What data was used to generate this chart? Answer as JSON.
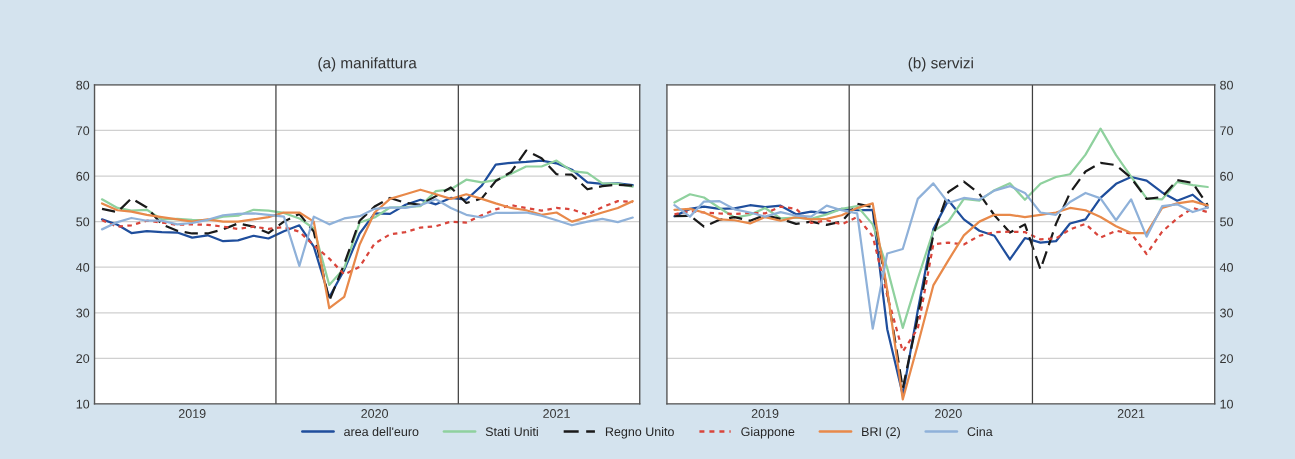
{
  "chart_data": [
    {
      "type": "line",
      "title": "(a) manifattura",
      "legend": "bottom",
      "grid": "y",
      "x": [
        "2019-01",
        "2019-02",
        "2019-03",
        "2019-04",
        "2019-05",
        "2019-06",
        "2019-07",
        "2019-08",
        "2019-09",
        "2019-10",
        "2019-11",
        "2019-12",
        "2020-01",
        "2020-02",
        "2020-03",
        "2020-04",
        "2020-05",
        "2020-06",
        "2020-07",
        "2020-08",
        "2020-09",
        "2020-10",
        "2020-11",
        "2020-12",
        "2021-01",
        "2021-02",
        "2021-03",
        "2021-04",
        "2021-05",
        "2021-06",
        "2021-07",
        "2021-08",
        "2021-09",
        "2021-10",
        "2021-11",
        "2021-12"
      ],
      "xlim": [
        "2018-12-17",
        "2021-12-15"
      ],
      "xticks": [
        {
          "value": "2019-07-01",
          "label": "2019"
        },
        {
          "value": "2020-07-01",
          "label": "2020"
        },
        {
          "value": "2021-07-01",
          "label": "2021"
        }
      ],
      "ylim": [
        10,
        80
      ],
      "yticks": [
        10,
        20,
        30,
        40,
        50,
        60,
        70,
        80
      ],
      "ref_lines": [
        {
          "axis": "x",
          "value": "2019-12-16",
          "color": "#404040"
        },
        {
          "axis": "x",
          "value": "2020-12-16",
          "color": "#404040"
        }
      ],
      "series": [
        {
          "name": "area dell'euro",
          "color": "#1f4e9c",
          "line_style": "solid",
          "values": [
            50.5,
            49.3,
            47.5,
            47.9,
            47.7,
            47.6,
            46.5,
            47.0,
            45.7,
            45.9,
            46.9,
            46.3,
            47.9,
            49.2,
            44.5,
            33.4,
            39.4,
            47.4,
            51.8,
            51.7,
            53.7,
            54.8,
            53.8,
            55.2,
            54.8,
            57.9,
            62.5,
            62.9,
            63.1,
            63.4,
            62.8,
            61.4,
            58.6,
            58.3,
            58.4,
            58.0
          ]
        },
        {
          "name": "Stati Uniti",
          "color": "#8fd19e",
          "line_style": "solid",
          "values": [
            54.9,
            53.0,
            52.4,
            52.6,
            50.5,
            50.6,
            50.4,
            50.3,
            51.1,
            51.3,
            52.6,
            52.4,
            51.9,
            50.7,
            48.5,
            36.1,
            39.8,
            49.8,
            50.9,
            53.1,
            53.2,
            53.4,
            56.7,
            57.1,
            59.2,
            58.6,
            59.1,
            60.5,
            62.1,
            62.1,
            63.4,
            61.1,
            60.7,
            58.4,
            58.3,
            57.7
          ]
        },
        {
          "name": "Regno Unito",
          "color": "#1a1a1a",
          "line_style": "dashed",
          "values": [
            52.8,
            52.1,
            55.1,
            53.1,
            49.4,
            48.0,
            47.4,
            47.4,
            48.3,
            49.6,
            48.9,
            47.5,
            50.0,
            51.7,
            47.8,
            32.6,
            40.7,
            50.2,
            53.3,
            55.2,
            54.1,
            53.7,
            55.6,
            57.5,
            54.1,
            55.1,
            58.9,
            60.9,
            65.6,
            63.9,
            60.4,
            60.3,
            57.1,
            57.8,
            58.1,
            57.9
          ]
        },
        {
          "name": "Giappone",
          "color": "#d9453b",
          "line_style": "dotted",
          "values": [
            50.3,
            48.9,
            49.2,
            50.2,
            49.8,
            49.3,
            49.4,
            49.3,
            48.9,
            48.4,
            48.9,
            48.4,
            48.8,
            47.8,
            44.8,
            41.9,
            38.4,
            40.1,
            45.2,
            47.2,
            47.7,
            48.7,
            49.0,
            50.0,
            49.8,
            51.4,
            52.7,
            53.6,
            53.0,
            52.4,
            53.0,
            52.7,
            51.5,
            53.2,
            54.5,
            54.3
          ]
        },
        {
          "name": "BRI (2)",
          "color": "#e8894a",
          "line_style": "solid",
          "values": [
            54,
            52.5,
            52.2,
            51.5,
            51,
            50.5,
            50,
            50.5,
            50,
            50,
            50.5,
            51,
            52,
            52,
            50,
            31,
            33.5,
            45,
            52,
            55,
            56,
            57,
            56,
            55,
            56,
            55,
            54,
            53,
            52.5,
            51.5,
            52,
            50,
            51,
            52,
            53,
            54.5
          ]
        },
        {
          "name": "Cina",
          "color": "#8fb1d9",
          "line_style": "solid",
          "values": [
            48.3,
            49.9,
            50.8,
            50.2,
            50.2,
            49.4,
            49.7,
            50.4,
            51.4,
            51.7,
            51.8,
            51.5,
            51.1,
            40.3,
            51.1,
            49.4,
            50.7,
            51.2,
            52.8,
            53.1,
            53.0,
            53.6,
            54.9,
            53.0,
            51.5,
            50.9,
            51.9,
            51.9,
            52.0,
            51.3,
            50.3,
            49.2,
            50.0,
            50.6,
            49.9,
            50.9
          ]
        }
      ]
    },
    {
      "type": "line",
      "title": "(b) servizi",
      "grid": "y",
      "x": [
        "2019-01",
        "2019-02",
        "2019-03",
        "2019-04",
        "2019-05",
        "2019-06",
        "2019-07",
        "2019-08",
        "2019-09",
        "2019-10",
        "2019-11",
        "2019-12",
        "2020-01",
        "2020-02",
        "2020-03",
        "2020-04",
        "2020-05",
        "2020-06",
        "2020-07",
        "2020-08",
        "2020-09",
        "2020-10",
        "2020-11",
        "2020-12",
        "2021-01",
        "2021-02",
        "2021-03",
        "2021-04",
        "2021-05",
        "2021-06",
        "2021-07",
        "2021-08",
        "2021-09",
        "2021-10",
        "2021-11",
        "2021-12"
      ],
      "xlim": [
        "2018-12-17",
        "2021-12-15"
      ],
      "xticks": [
        {
          "value": "2019-07-01",
          "label": "2019"
        },
        {
          "value": "2020-07-01",
          "label": "2020"
        },
        {
          "value": "2021-07-01",
          "label": "2021"
        }
      ],
      "ylim": [
        10,
        80
      ],
      "yticks": [
        10,
        20,
        30,
        40,
        50,
        60,
        70,
        80
      ],
      "ref_lines": [
        {
          "axis": "x",
          "value": "2019-12-16",
          "color": "#404040"
        },
        {
          "axis": "x",
          "value": "2020-12-16",
          "color": "#404040"
        }
      ],
      "series": [
        {
          "name": "area dell'euro",
          "color": "#1f4e9c",
          "line_style": "solid",
          "values": [
            51.2,
            52.8,
            53.3,
            52.8,
            52.9,
            53.6,
            53.2,
            53.5,
            51.6,
            52.2,
            51.9,
            52.8,
            52.5,
            52.6,
            26.4,
            12.0,
            30.5,
            48.3,
            54.7,
            50.5,
            48.0,
            46.9,
            41.7,
            46.4,
            45.4,
            45.7,
            49.6,
            50.5,
            55.2,
            58.3,
            59.8,
            59.0,
            56.4,
            54.6,
            55.9,
            53.1
          ]
        },
        {
          "name": "Stati Uniti",
          "color": "#8fd19e",
          "line_style": "solid",
          "values": [
            54.2,
            56.0,
            55.3,
            53.0,
            50.9,
            51.5,
            53.0,
            50.7,
            50.9,
            50.6,
            51.6,
            52.8,
            53.4,
            49.4,
            39.8,
            26.7,
            37.5,
            47.9,
            50.0,
            55.0,
            54.6,
            56.9,
            58.4,
            54.8,
            58.3,
            59.8,
            60.4,
            64.7,
            70.4,
            64.6,
            59.9,
            55.1,
            54.9,
            58.7,
            58.0,
            57.6
          ]
        },
        {
          "name": "Regno Unito",
          "color": "#1a1a1a",
          "line_style": "dashed",
          "values": [
            51.2,
            51.3,
            48.9,
            50.4,
            51.0,
            50.2,
            51.4,
            50.6,
            49.5,
            50.0,
            49.3,
            50.0,
            53.9,
            53.2,
            34.5,
            13.4,
            29.0,
            47.1,
            56.5,
            58.8,
            56.1,
            51.4,
            47.6,
            49.4,
            39.5,
            49.5,
            56.3,
            61.0,
            62.9,
            62.4,
            59.6,
            55.0,
            55.4,
            59.1,
            58.5,
            53.6
          ]
        },
        {
          "name": "Giappone",
          "color": "#d9453b",
          "line_style": "dotted",
          "values": [
            51.6,
            52.3,
            52.0,
            51.8,
            51.7,
            51.9,
            51.8,
            53.3,
            52.8,
            49.7,
            50.3,
            49.4,
            51.0,
            46.8,
            33.8,
            21.5,
            26.5,
            45.0,
            45.4,
            45.0,
            46.9,
            47.7,
            47.8,
            47.7,
            46.1,
            46.3,
            48.3,
            49.5,
            46.5,
            48.0,
            47.4,
            42.9,
            47.8,
            50.7,
            53.0,
            52.1
          ]
        },
        {
          "name": "BRI (2)",
          "color": "#e8894a",
          "line_style": "solid",
          "values": [
            52.6,
            52.8,
            52.0,
            50.5,
            50.3,
            49.6,
            51.0,
            50.2,
            51.0,
            50.5,
            50.6,
            51.4,
            53.0,
            54.0,
            35.0,
            11.0,
            23.0,
            36.0,
            41.5,
            47.0,
            50.0,
            51.5,
            51.5,
            51.0,
            51.5,
            52.0,
            53.0,
            52.5,
            51.0,
            49.0,
            47.5,
            47.5,
            53.0,
            54.0,
            54.5,
            53.5
          ]
        },
        {
          "name": "Cina",
          "color": "#8fb1d9",
          "line_style": "solid",
          "values": [
            53.6,
            51.1,
            54.4,
            54.5,
            52.7,
            52.0,
            51.1,
            52.1,
            51.3,
            51.1,
            53.5,
            52.5,
            51.8,
            26.5,
            43.0,
            44.0,
            55.0,
            58.4,
            54.1,
            55.2,
            54.8,
            56.8,
            57.8,
            56.3,
            52.0,
            51.5,
            54.3,
            56.3,
            55.1,
            50.3,
            54.9,
            46.7,
            53.4,
            53.8,
            52.1,
            53.1
          ]
        }
      ]
    }
  ]
}
